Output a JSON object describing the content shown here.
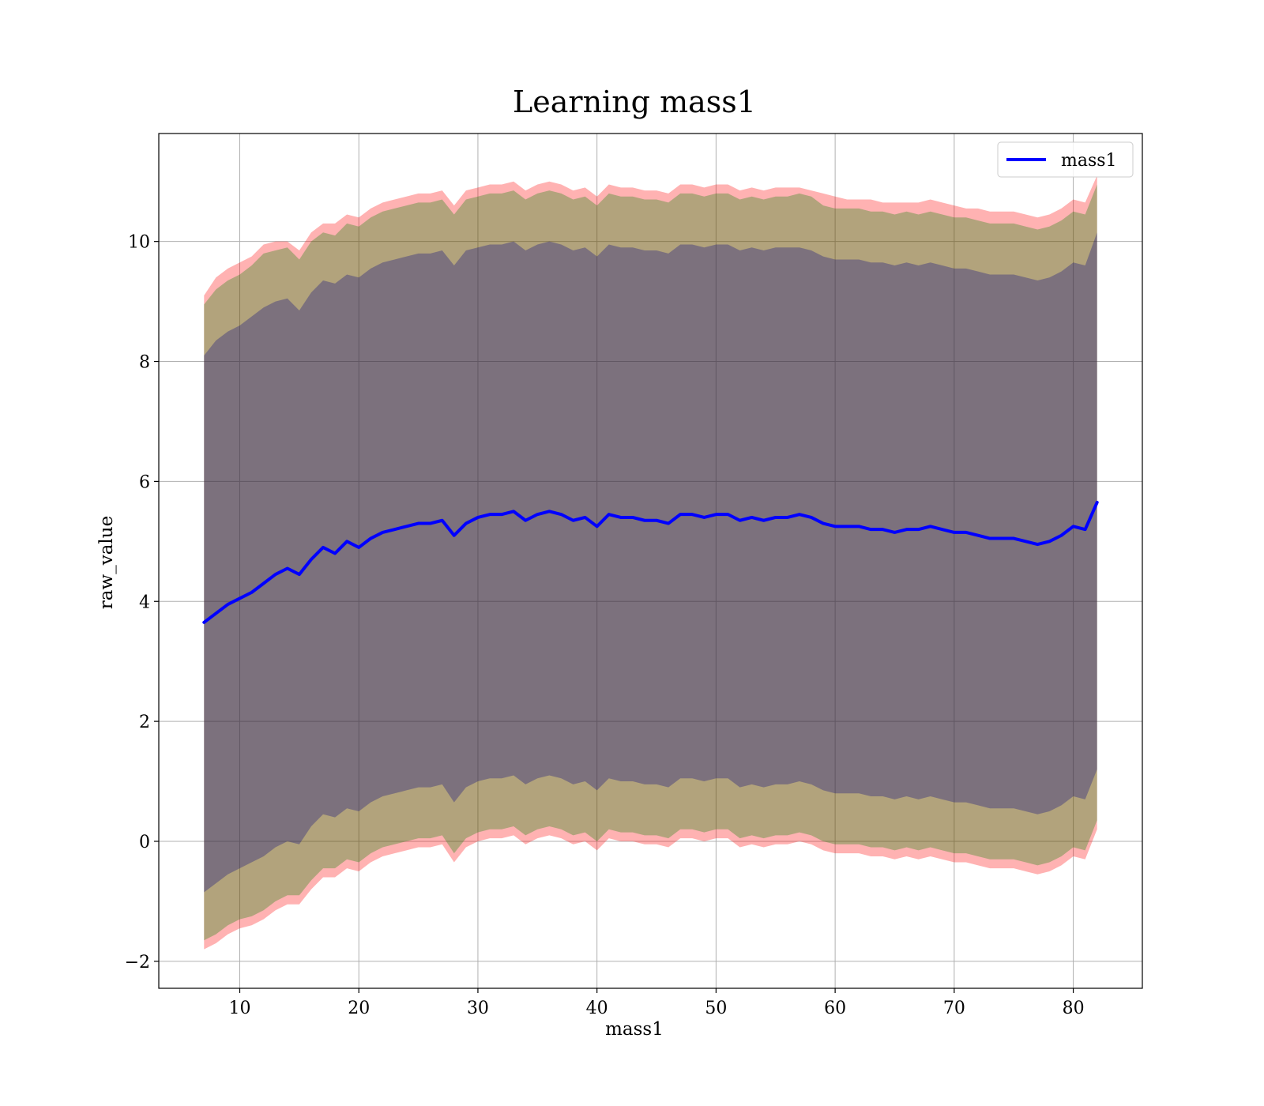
{
  "chart_data": {
    "type": "line",
    "title": "Learning mass1",
    "xlabel": "mass1",
    "ylabel": "raw_value",
    "xlim": [
      3.2,
      85.8
    ],
    "ylim": [
      -2.45,
      11.8
    ],
    "x_ticks": [
      10,
      20,
      30,
      40,
      50,
      60,
      70,
      80
    ],
    "y_ticks": [
      -2,
      0,
      2,
      4,
      6,
      8,
      10
    ],
    "x_tick_labels": [
      "10",
      "20",
      "30",
      "40",
      "50",
      "60",
      "70",
      "80"
    ],
    "y_tick_labels": [
      "−2",
      "0",
      "2",
      "4",
      "6",
      "8",
      "10"
    ],
    "grid": true,
    "legend": {
      "position": "top-right",
      "entries": [
        "mass1"
      ]
    },
    "series": [
      {
        "name": "mass1",
        "color": "#0000ff",
        "x": [
          7,
          8,
          9,
          10,
          11,
          12,
          13,
          14,
          15,
          16,
          17,
          18,
          19,
          20,
          21,
          22,
          23,
          24,
          25,
          26,
          27,
          28,
          29,
          30,
          31,
          32,
          33,
          34,
          35,
          36,
          37,
          38,
          39,
          40,
          41,
          42,
          43,
          44,
          45,
          46,
          47,
          48,
          49,
          50,
          51,
          52,
          53,
          54,
          55,
          56,
          57,
          58,
          59,
          60,
          61,
          62,
          63,
          64,
          65,
          66,
          67,
          68,
          69,
          70,
          71,
          72,
          73,
          74,
          75,
          76,
          77,
          78,
          79,
          80,
          81,
          82
        ],
        "y": [
          3.65,
          3.8,
          3.95,
          4.05,
          4.15,
          4.3,
          4.45,
          4.55,
          4.45,
          4.7,
          4.9,
          4.8,
          5.0,
          4.9,
          5.05,
          5.15,
          5.2,
          5.25,
          5.3,
          5.3,
          5.35,
          5.1,
          5.3,
          5.4,
          5.45,
          5.45,
          5.5,
          5.35,
          5.45,
          5.5,
          5.45,
          5.35,
          5.4,
          5.25,
          5.45,
          5.4,
          5.4,
          5.35,
          5.35,
          5.3,
          5.45,
          5.45,
          5.4,
          5.45,
          5.45,
          5.35,
          5.4,
          5.35,
          5.4,
          5.4,
          5.45,
          5.4,
          5.3,
          5.25,
          5.25,
          5.25,
          5.2,
          5.2,
          5.15,
          5.2,
          5.2,
          5.25,
          5.2,
          5.15,
          5.15,
          5.1,
          5.05,
          5.05,
          5.05,
          5.0,
          4.95,
          5.0,
          5.1,
          5.25,
          5.2,
          5.65
        ]
      }
    ],
    "bands": [
      {
        "color": "#ff0000",
        "opacity": 0.3,
        "upper": [
          9.1,
          9.4,
          9.55,
          9.65,
          9.75,
          9.95,
          10.0,
          10.0,
          9.85,
          10.15,
          10.3,
          10.3,
          10.45,
          10.4,
          10.55,
          10.65,
          10.7,
          10.75,
          10.8,
          10.8,
          10.85,
          10.6,
          10.85,
          10.9,
          10.95,
          10.95,
          11.0,
          10.85,
          10.95,
          11.0,
          10.95,
          10.85,
          10.9,
          10.75,
          10.95,
          10.9,
          10.9,
          10.85,
          10.85,
          10.8,
          10.95,
          10.95,
          10.9,
          10.95,
          10.95,
          10.85,
          10.9,
          10.85,
          10.9,
          10.9,
          10.9,
          10.85,
          10.8,
          10.75,
          10.7,
          10.7,
          10.7,
          10.65,
          10.65,
          10.65,
          10.65,
          10.7,
          10.65,
          10.6,
          10.55,
          10.55,
          10.5,
          10.5,
          10.5,
          10.45,
          10.4,
          10.45,
          10.55,
          10.7,
          10.65,
          11.1
        ],
        "lower": [
          -1.8,
          -1.7,
          -1.55,
          -1.45,
          -1.4,
          -1.3,
          -1.15,
          -1.05,
          -1.05,
          -0.8,
          -0.6,
          -0.6,
          -0.45,
          -0.5,
          -0.35,
          -0.25,
          -0.2,
          -0.15,
          -0.1,
          -0.1,
          -0.05,
          -0.35,
          -0.1,
          0.0,
          0.05,
          0.05,
          0.1,
          -0.05,
          0.05,
          0.1,
          0.05,
          -0.05,
          0.0,
          -0.15,
          0.05,
          0.0,
          0.0,
          -0.05,
          -0.05,
          -0.1,
          0.05,
          0.05,
          0.0,
          0.05,
          0.05,
          -0.1,
          -0.05,
          -0.1,
          -0.05,
          -0.05,
          0.0,
          -0.05,
          -0.15,
          -0.2,
          -0.2,
          -0.2,
          -0.25,
          -0.25,
          -0.3,
          -0.25,
          -0.3,
          -0.25,
          -0.3,
          -0.35,
          -0.35,
          -0.4,
          -0.45,
          -0.45,
          -0.45,
          -0.5,
          -0.55,
          -0.5,
          -0.4,
          -0.25,
          -0.3,
          0.2
        ]
      },
      {
        "color": "#008000",
        "opacity": 0.3,
        "upper": [
          8.95,
          9.2,
          9.35,
          9.45,
          9.6,
          9.8,
          9.85,
          9.9,
          9.7,
          10.0,
          10.15,
          10.1,
          10.3,
          10.25,
          10.4,
          10.5,
          10.55,
          10.6,
          10.65,
          10.65,
          10.7,
          10.45,
          10.7,
          10.75,
          10.8,
          10.8,
          10.85,
          10.7,
          10.8,
          10.85,
          10.8,
          10.7,
          10.75,
          10.6,
          10.8,
          10.75,
          10.75,
          10.7,
          10.7,
          10.65,
          10.8,
          10.8,
          10.75,
          10.8,
          10.8,
          10.7,
          10.75,
          10.7,
          10.75,
          10.75,
          10.8,
          10.75,
          10.6,
          10.55,
          10.55,
          10.55,
          10.5,
          10.5,
          10.45,
          10.5,
          10.45,
          10.5,
          10.45,
          10.4,
          10.4,
          10.35,
          10.3,
          10.3,
          10.3,
          10.25,
          10.2,
          10.25,
          10.35,
          10.5,
          10.45,
          10.95
        ],
        "lower": [
          -1.65,
          -1.55,
          -1.4,
          -1.3,
          -1.25,
          -1.15,
          -1.0,
          -0.9,
          -0.9,
          -0.65,
          -0.45,
          -0.45,
          -0.3,
          -0.35,
          -0.2,
          -0.1,
          -0.05,
          0.0,
          0.05,
          0.05,
          0.1,
          -0.2,
          0.05,
          0.15,
          0.2,
          0.2,
          0.25,
          0.1,
          0.2,
          0.25,
          0.2,
          0.1,
          0.15,
          0.0,
          0.2,
          0.15,
          0.15,
          0.1,
          0.1,
          0.05,
          0.2,
          0.2,
          0.15,
          0.2,
          0.2,
          0.05,
          0.1,
          0.05,
          0.1,
          0.1,
          0.15,
          0.1,
          0.0,
          -0.05,
          -0.05,
          -0.05,
          -0.1,
          -0.1,
          -0.15,
          -0.1,
          -0.15,
          -0.1,
          -0.15,
          -0.2,
          -0.2,
          -0.25,
          -0.3,
          -0.3,
          -0.3,
          -0.35,
          -0.4,
          -0.35,
          -0.25,
          -0.1,
          -0.15,
          0.35
        ]
      },
      {
        "color": "#000080",
        "opacity": 0.3,
        "upper": [
          8.1,
          8.35,
          8.5,
          8.6,
          8.75,
          8.9,
          9.0,
          9.05,
          8.85,
          9.15,
          9.35,
          9.3,
          9.45,
          9.4,
          9.55,
          9.65,
          9.7,
          9.75,
          9.8,
          9.8,
          9.85,
          9.6,
          9.85,
          9.9,
          9.95,
          9.95,
          10.0,
          9.85,
          9.95,
          10.0,
          9.95,
          9.85,
          9.9,
          9.75,
          9.95,
          9.9,
          9.9,
          9.85,
          9.85,
          9.8,
          9.95,
          9.95,
          9.9,
          9.95,
          9.95,
          9.85,
          9.9,
          9.85,
          9.9,
          9.9,
          9.9,
          9.85,
          9.75,
          9.7,
          9.7,
          9.7,
          9.65,
          9.65,
          9.6,
          9.65,
          9.6,
          9.65,
          9.6,
          9.55,
          9.55,
          9.5,
          9.45,
          9.45,
          9.45,
          9.4,
          9.35,
          9.4,
          9.5,
          9.65,
          9.6,
          10.15
        ],
        "lower": [
          -0.85,
          -0.7,
          -0.55,
          -0.45,
          -0.35,
          -0.25,
          -0.1,
          0.0,
          -0.05,
          0.25,
          0.45,
          0.4,
          0.55,
          0.5,
          0.65,
          0.75,
          0.8,
          0.85,
          0.9,
          0.9,
          0.95,
          0.65,
          0.9,
          1.0,
          1.05,
          1.05,
          1.1,
          0.95,
          1.05,
          1.1,
          1.05,
          0.95,
          1.0,
          0.85,
          1.05,
          1.0,
          1.0,
          0.95,
          0.95,
          0.9,
          1.05,
          1.05,
          1.0,
          1.05,
          1.05,
          0.9,
          0.95,
          0.9,
          0.95,
          0.95,
          1.0,
          0.95,
          0.85,
          0.8,
          0.8,
          0.8,
          0.75,
          0.75,
          0.7,
          0.75,
          0.7,
          0.75,
          0.7,
          0.65,
          0.65,
          0.6,
          0.55,
          0.55,
          0.55,
          0.5,
          0.45,
          0.5,
          0.6,
          0.75,
          0.7,
          1.2
        ]
      }
    ]
  }
}
